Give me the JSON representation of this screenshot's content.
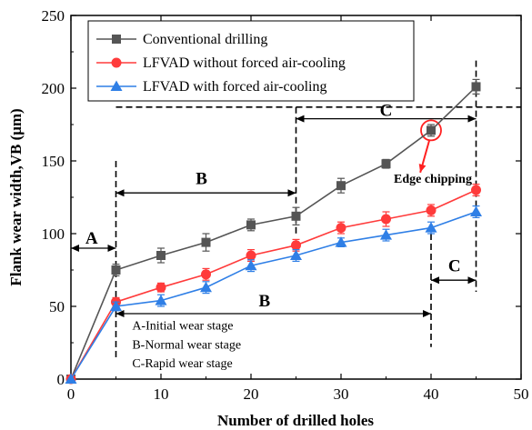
{
  "chart_data": {
    "type": "line",
    "xlabel": "Number of drilled holes",
    "ylabel": "Flank wear width,VB (μm)",
    "xlim": [
      0,
      50
    ],
    "ylim": [
      0,
      250
    ],
    "xticks": [
      0,
      10,
      20,
      30,
      40,
      50
    ],
    "yticks": [
      0,
      50,
      100,
      150,
      200,
      250
    ],
    "x": [
      0,
      5,
      10,
      15,
      20,
      25,
      30,
      35,
      40,
      45
    ],
    "series": [
      {
        "name": "Conventional drilling",
        "color": "#555555",
        "marker": "square",
        "values": [
          0,
          75,
          85,
          94,
          106,
          112,
          133,
          148,
          171,
          201
        ],
        "errors": [
          0,
          4,
          5,
          6,
          4,
          6,
          5,
          3,
          4,
          5
        ]
      },
      {
        "name": "LFVAD without forced air-cooling",
        "color": "#ff3b3b",
        "marker": "circle",
        "values": [
          0,
          53,
          63,
          72,
          85,
          92,
          104,
          110,
          116,
          130
        ],
        "errors": [
          0,
          3,
          3,
          4,
          4,
          4,
          4,
          5,
          4,
          4
        ]
      },
      {
        "name": "LFVAD with forced air-cooling",
        "color": "#2f7fe6",
        "marker": "triangle",
        "values": [
          0,
          50,
          54,
          63,
          78,
          85,
          94,
          99,
          104,
          115
        ],
        "errors": [
          0,
          3,
          4,
          4,
          4,
          4,
          3,
          4,
          4,
          4
        ]
      }
    ],
    "legend_position": "top-left",
    "annotations": {
      "label_a": "A",
      "label_b_upper": "B",
      "label_b_lower": "B",
      "label_c_upper": "C",
      "label_c_lower": "C",
      "edge_chipping": "Edge chipping",
      "note_a": "A-Initial wear stage",
      "note_b": "B-Normal wear stage",
      "note_c": "C-Rapid wear stage",
      "threshold_y": 187
    }
  }
}
